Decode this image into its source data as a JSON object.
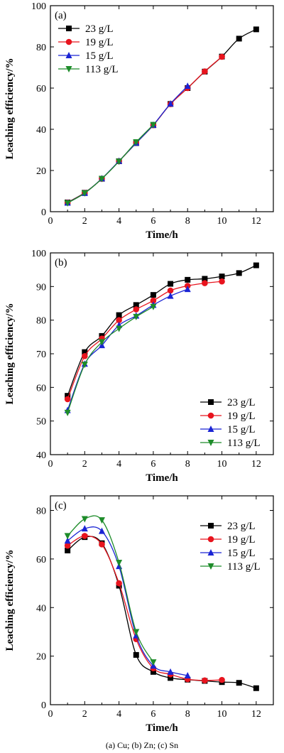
{
  "colors": {
    "23 g/L": "#000000",
    "19 g/L": "#e8141e",
    "15 g/L": "#1a24d4",
    "113 g/L": "#1e8c2a"
  },
  "markers": {
    "23 g/L": "square",
    "19 g/L": "circle",
    "15 g/L": "triangle-up",
    "113 g/L": "triangle-down"
  },
  "caption": "(a) Cu; (b) Zn; (c) Sn",
  "chart_data": [
    {
      "type": "line",
      "panel_label": "(a)",
      "xlabel": "Time/h",
      "ylabel": "Leaching efficiency/%",
      "xlim": [
        0,
        13
      ],
      "ylim": [
        0,
        100
      ],
      "xticks": [
        0,
        2,
        4,
        6,
        8,
        10,
        12
      ],
      "yticks": [
        0,
        20,
        40,
        60,
        80,
        100
      ],
      "legend_position": "top-left",
      "series": [
        {
          "name": "23 g/L",
          "x": [
            1,
            2,
            3,
            4,
            5,
            6,
            7,
            8,
            9,
            10,
            11,
            12
          ],
          "values": [
            4.5,
            9.2,
            16,
            24.5,
            33.3,
            42,
            52.3,
            60,
            68,
            75.3,
            84,
            88.5
          ]
        },
        {
          "name": "19 g/L",
          "x": [
            1,
            2,
            3,
            4,
            5,
            6,
            7,
            8,
            9,
            10
          ],
          "values": [
            4.4,
            9.1,
            16,
            24.5,
            33.5,
            42,
            52.2,
            60,
            68.1,
            75.2
          ]
        },
        {
          "name": "15 g/L",
          "x": [
            1,
            2,
            3,
            4,
            5,
            6,
            7,
            8
          ],
          "values": [
            4.3,
            9,
            16.1,
            24.6,
            33.4,
            42.1,
            52.4,
            61
          ]
        },
        {
          "name": "113 g/L",
          "x": [
            1,
            2,
            3,
            4,
            5,
            6
          ],
          "values": [
            4.2,
            9,
            16,
            24.4,
            33.8,
            42.2
          ]
        }
      ]
    },
    {
      "type": "line",
      "panel_label": "(b)",
      "xlabel": "Time/h",
      "ylabel": "Leaching efficiency/%",
      "xlim": [
        0,
        13
      ],
      "ylim": [
        40,
        100
      ],
      "xticks": [
        0,
        2,
        4,
        6,
        8,
        10,
        12
      ],
      "yticks": [
        40,
        50,
        60,
        70,
        80,
        90,
        100
      ],
      "legend_position": "right",
      "series": [
        {
          "name": "23 g/L",
          "x": [
            1,
            2,
            3,
            4,
            5,
            6,
            7,
            8,
            9,
            10,
            11,
            12
          ],
          "values": [
            57.5,
            70.5,
            75.3,
            81.5,
            84.5,
            87.5,
            90.8,
            92,
            92.3,
            93,
            94,
            96.3
          ]
        },
        {
          "name": "19 g/L",
          "x": [
            1,
            2,
            3,
            4,
            5,
            6,
            7,
            8,
            9,
            10
          ],
          "values": [
            56.5,
            69.3,
            74.5,
            80,
            83.2,
            85.8,
            88.8,
            90.2,
            91,
            91.5
          ]
        },
        {
          "name": "15 g/L",
          "x": [
            1,
            2,
            3,
            4,
            5,
            6,
            7,
            8
          ],
          "values": [
            53.2,
            67,
            72.5,
            78.5,
            81.3,
            84.5,
            87.2,
            89.2
          ]
        },
        {
          "name": "113 g/L",
          "x": [
            1,
            2,
            3,
            4,
            5,
            6
          ],
          "values": [
            52.5,
            66.8,
            73.5,
            77.5,
            81,
            84
          ]
        }
      ]
    },
    {
      "type": "line",
      "panel_label": "(c)",
      "xlabel": "Time/h",
      "ylabel": "Leaching efficiency/%",
      "xlim": [
        0,
        13
      ],
      "ylim": [
        0,
        86
      ],
      "xticks": [
        0,
        2,
        4,
        6,
        8,
        10,
        12
      ],
      "yticks": [
        0,
        20,
        40,
        60,
        80
      ],
      "legend_position": "top-right",
      "series": [
        {
          "name": "23 g/L",
          "x": [
            1,
            2,
            3,
            4,
            5,
            6,
            7,
            8,
            9,
            10,
            11,
            12
          ],
          "values": [
            63.5,
            69,
            66.5,
            49,
            20.5,
            13.5,
            11,
            10.3,
            9.8,
            9.3,
            9,
            6.8
          ]
        },
        {
          "name": "19 g/L",
          "x": [
            1,
            2,
            3,
            4,
            5,
            6,
            7,
            8,
            9,
            10
          ],
          "values": [
            65.5,
            69.5,
            66,
            50,
            27,
            15,
            12.5,
            10.5,
            10,
            10.2
          ]
        },
        {
          "name": "15 g/L",
          "x": [
            1,
            2,
            3,
            4,
            5,
            6,
            7,
            8
          ],
          "values": [
            67.5,
            72.5,
            71.5,
            57,
            28.5,
            16,
            13.5,
            12
          ]
        },
        {
          "name": "113 g/L",
          "x": [
            1,
            2,
            3,
            4,
            5,
            6
          ],
          "values": [
            69.5,
            76.5,
            76,
            58.5,
            30,
            17.5
          ]
        }
      ]
    }
  ]
}
